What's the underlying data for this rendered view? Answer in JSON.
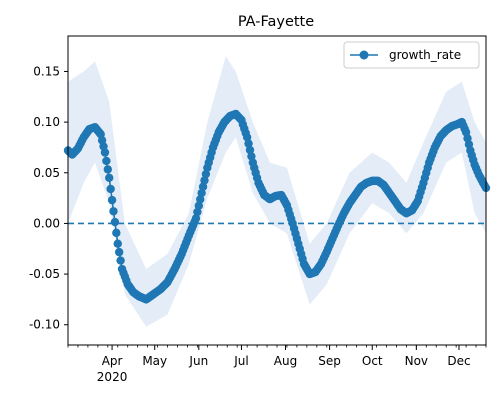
{
  "chart_data": {
    "type": "line",
    "title": "PA-Fayette",
    "xlabel": "",
    "ylabel": "",
    "x_start": "2020-03-01",
    "x_end": "2020-12-20",
    "ylim": [
      -0.12,
      0.185
    ],
    "y_ticks": [
      -0.1,
      -0.05,
      0.0,
      0.05,
      0.1,
      0.15
    ],
    "x_ticks": [
      {
        "date": "2020-04-01",
        "label": "Apr"
      },
      {
        "date": "2020-05-01",
        "label": "May"
      },
      {
        "date": "2020-06-01",
        "label": "Jun"
      },
      {
        "date": "2020-07-01",
        "label": "Jul"
      },
      {
        "date": "2020-08-01",
        "label": "Aug"
      },
      {
        "date": "2020-09-01",
        "label": "Sep"
      },
      {
        "date": "2020-10-01",
        "label": "Oct"
      },
      {
        "date": "2020-11-01",
        "label": "Nov"
      },
      {
        "date": "2020-12-01",
        "label": "Dec"
      }
    ],
    "year_label": "2020",
    "reference_line": {
      "y": 0,
      "style": "dashed"
    },
    "legend": {
      "position": "upper-right",
      "entries": [
        "growth_rate"
      ]
    },
    "colors": {
      "series": "#1f77b4",
      "band": "#dbe7f4"
    },
    "series": [
      {
        "name": "growth_rate",
        "points": [
          [
            "2020-03-01",
            0.072
          ],
          [
            "2020-03-04",
            0.068
          ],
          [
            "2020-03-08",
            0.074
          ],
          [
            "2020-03-12",
            0.085
          ],
          [
            "2020-03-16",
            0.093
          ],
          [
            "2020-03-20",
            0.095
          ],
          [
            "2020-03-24",
            0.088
          ],
          [
            "2020-03-27",
            0.07
          ],
          [
            "2020-03-30",
            0.045
          ],
          [
            "2020-04-02",
            0.012
          ],
          [
            "2020-04-05",
            -0.02
          ],
          [
            "2020-04-08",
            -0.045
          ],
          [
            "2020-04-12",
            -0.06
          ],
          [
            "2020-04-16",
            -0.068
          ],
          [
            "2020-04-20",
            -0.072
          ],
          [
            "2020-04-25",
            -0.075
          ],
          [
            "2020-04-30",
            -0.07
          ],
          [
            "2020-05-05",
            -0.065
          ],
          [
            "2020-05-10",
            -0.058
          ],
          [
            "2020-05-15",
            -0.045
          ],
          [
            "2020-05-20",
            -0.03
          ],
          [
            "2020-05-25",
            -0.012
          ],
          [
            "2020-05-30",
            0.005
          ],
          [
            "2020-06-03",
            0.03
          ],
          [
            "2020-06-07",
            0.055
          ],
          [
            "2020-06-11",
            0.075
          ],
          [
            "2020-06-15",
            0.09
          ],
          [
            "2020-06-19",
            0.1
          ],
          [
            "2020-06-23",
            0.106
          ],
          [
            "2020-06-27",
            0.108
          ],
          [
            "2020-07-01",
            0.102
          ],
          [
            "2020-07-05",
            0.085
          ],
          [
            "2020-07-09",
            0.06
          ],
          [
            "2020-07-13",
            0.04
          ],
          [
            "2020-07-17",
            0.028
          ],
          [
            "2020-07-21",
            0.024
          ],
          [
            "2020-07-25",
            0.027
          ],
          [
            "2020-07-29",
            0.028
          ],
          [
            "2020-08-02",
            0.018
          ],
          [
            "2020-08-06",
            0.0
          ],
          [
            "2020-08-10",
            -0.02
          ],
          [
            "2020-08-14",
            -0.04
          ],
          [
            "2020-08-18",
            -0.05
          ],
          [
            "2020-08-22",
            -0.048
          ],
          [
            "2020-08-26",
            -0.04
          ],
          [
            "2020-08-30",
            -0.028
          ],
          [
            "2020-09-03",
            -0.015
          ],
          [
            "2020-09-07",
            -0.002
          ],
          [
            "2020-09-11",
            0.01
          ],
          [
            "2020-09-15",
            0.02
          ],
          [
            "2020-09-19",
            0.028
          ],
          [
            "2020-09-23",
            0.036
          ],
          [
            "2020-09-27",
            0.04
          ],
          [
            "2020-10-01",
            0.042
          ],
          [
            "2020-10-05",
            0.042
          ],
          [
            "2020-10-09",
            0.038
          ],
          [
            "2020-10-13",
            0.03
          ],
          [
            "2020-10-17",
            0.022
          ],
          [
            "2020-10-21",
            0.014
          ],
          [
            "2020-10-25",
            0.01
          ],
          [
            "2020-10-29",
            0.013
          ],
          [
            "2020-11-02",
            0.022
          ],
          [
            "2020-11-06",
            0.04
          ],
          [
            "2020-11-10",
            0.06
          ],
          [
            "2020-11-14",
            0.075
          ],
          [
            "2020-11-18",
            0.086
          ],
          [
            "2020-11-22",
            0.092
          ],
          [
            "2020-11-26",
            0.096
          ],
          [
            "2020-11-30",
            0.098
          ],
          [
            "2020-12-03",
            0.1
          ],
          [
            "2020-12-06",
            0.09
          ],
          [
            "2020-12-09",
            0.072
          ],
          [
            "2020-12-12",
            0.058
          ],
          [
            "2020-12-15",
            0.048
          ],
          [
            "2020-12-18",
            0.04
          ],
          [
            "2020-12-20",
            0.035
          ]
        ],
        "band": [
          [
            "2020-03-01",
            0.0,
            0.14
          ],
          [
            "2020-03-12",
            0.04,
            0.15
          ],
          [
            "2020-03-20",
            0.06,
            0.16
          ],
          [
            "2020-03-30",
            0.02,
            0.12
          ],
          [
            "2020-04-10",
            -0.07,
            0.0
          ],
          [
            "2020-04-25",
            -0.102,
            -0.045
          ],
          [
            "2020-05-10",
            -0.09,
            -0.03
          ],
          [
            "2020-05-25",
            -0.04,
            0.01
          ],
          [
            "2020-06-07",
            0.025,
            0.1
          ],
          [
            "2020-06-20",
            0.07,
            0.165
          ],
          [
            "2020-06-27",
            0.085,
            0.15
          ],
          [
            "2020-07-09",
            0.03,
            0.1
          ],
          [
            "2020-07-21",
            0.0,
            0.06
          ],
          [
            "2020-08-02",
            -0.01,
            0.055
          ],
          [
            "2020-08-18",
            -0.08,
            -0.02
          ],
          [
            "2020-08-30",
            -0.06,
            0.0
          ],
          [
            "2020-09-15",
            -0.01,
            0.05
          ],
          [
            "2020-10-01",
            0.02,
            0.07
          ],
          [
            "2020-10-13",
            0.01,
            0.06
          ],
          [
            "2020-10-25",
            -0.01,
            0.04
          ],
          [
            "2020-11-06",
            0.01,
            0.08
          ],
          [
            "2020-11-22",
            0.06,
            0.13
          ],
          [
            "2020-12-03",
            0.07,
            0.14
          ],
          [
            "2020-12-12",
            0.01,
            0.1
          ],
          [
            "2020-12-20",
            -0.01,
            0.08
          ]
        ]
      }
    ]
  }
}
